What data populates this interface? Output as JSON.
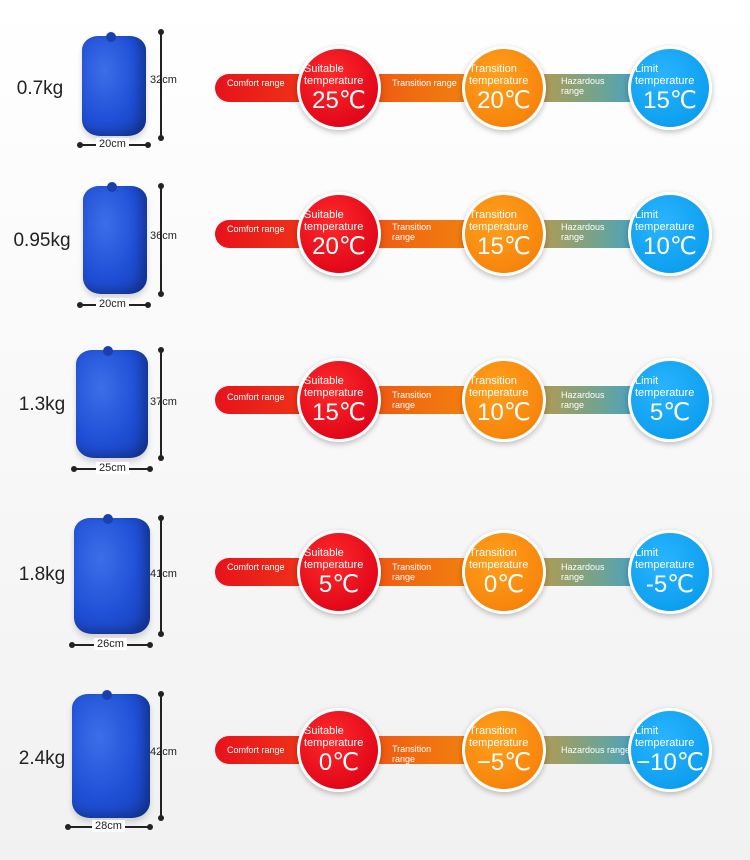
{
  "labels": {
    "comfort": "Comfort range",
    "transition": "Transition range",
    "hazardous": "Hazardous range",
    "suitable": "Suitable temperature",
    "transition_temp": "Transition temperature",
    "limit": "Limit temperature"
  },
  "rows": [
    {
      "weight": "0.7kg",
      "height": "32cm",
      "width": "20cm",
      "suitable": "25℃",
      "transition": "20℃",
      "limit": "15℃"
    },
    {
      "weight": "0.95kg",
      "height": "36cm",
      "width": "20cm",
      "suitable": "20℃",
      "transition": "15℃",
      "limit": "10℃"
    },
    {
      "weight": "1.3kg",
      "height": "37cm",
      "width": "25cm",
      "suitable": "15℃",
      "transition": "10℃",
      "limit": "5℃"
    },
    {
      "weight": "1.8kg",
      "height": "41cm",
      "width": "26cm",
      "suitable": "5℃",
      "transition": "0℃",
      "limit": "-5℃"
    },
    {
      "weight": "2.4kg",
      "height": "42cm",
      "width": "28cm",
      "suitable": "0℃",
      "transition": "−5℃",
      "limit": "−10℃"
    }
  ],
  "colors": {
    "bag": "#1f4fd6",
    "suitable": "#e2081a",
    "transition": "#f7860c",
    "limit": "#0ea0f0"
  }
}
